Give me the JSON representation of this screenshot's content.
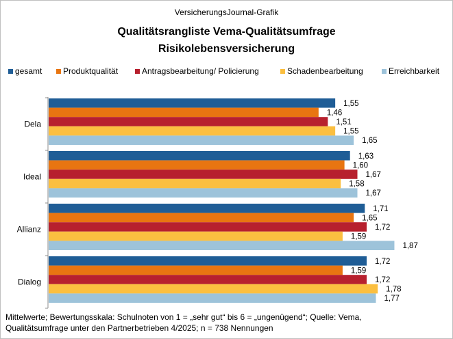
{
  "header": {
    "source": "VersicherungsJournal-Grafik",
    "title_line1": "Qualitätsrangliste  Vema-Qualitätsumfrage",
    "title_line2": "Risikolebensversicherung"
  },
  "footnote": {
    "line1": "Mittelwerte; Bewertungsskala: Schulnoten von 1 = „sehr gut“ bis 6 = „ungenügend“;  Quelle: Vema,",
    "line2": "Qualitätsumfrage  unter den Partnerbetrieben  4/2025; n = 738 Nennungen"
  },
  "chart_data": {
    "type": "bar",
    "orientation": "horizontal",
    "title": "Qualitätsrangliste  Vema-Qualitätsumfrage Risikolebensversicherung",
    "categories": [
      "Dela",
      "Ideal",
      "Allianz",
      "Dialog"
    ],
    "series": [
      {
        "name": "gesamt",
        "color": "#1f5d96",
        "values": [
          1.55,
          1.63,
          1.71,
          1.72
        ],
        "labels": [
          "1,55",
          "1,63",
          "1,71",
          "1,72"
        ]
      },
      {
        "name": "Produktqualität",
        "color": "#e87511",
        "values": [
          1.46,
          1.6,
          1.65,
          1.59
        ],
        "labels": [
          "1,46",
          "1,60",
          "1,65",
          "1,59"
        ]
      },
      {
        "name": "Antragsbearbeitung/ Policierung",
        "color": "#b7202e",
        "values": [
          1.51,
          1.67,
          1.72,
          1.72
        ],
        "labels": [
          "1,51",
          "1,67",
          "1,72",
          "1,72"
        ]
      },
      {
        "name": "Schadenbearbeitung",
        "color": "#fbbf40",
        "values": [
          1.55,
          1.58,
          1.59,
          1.78
        ],
        "labels": [
          "1,55",
          "1,58",
          "1,59",
          "1,78"
        ]
      },
      {
        "name": "Erreichbarkeit",
        "color": "#9dc3da",
        "values": [
          1.65,
          1.67,
          1.87,
          1.77
        ],
        "labels": [
          "1,65",
          "1,67",
          "1,87",
          "1,77"
        ]
      }
    ],
    "xlim": [
      0,
      2.0
    ],
    "xlabel": "",
    "ylabel": "",
    "legend": "top",
    "grid": false
  }
}
